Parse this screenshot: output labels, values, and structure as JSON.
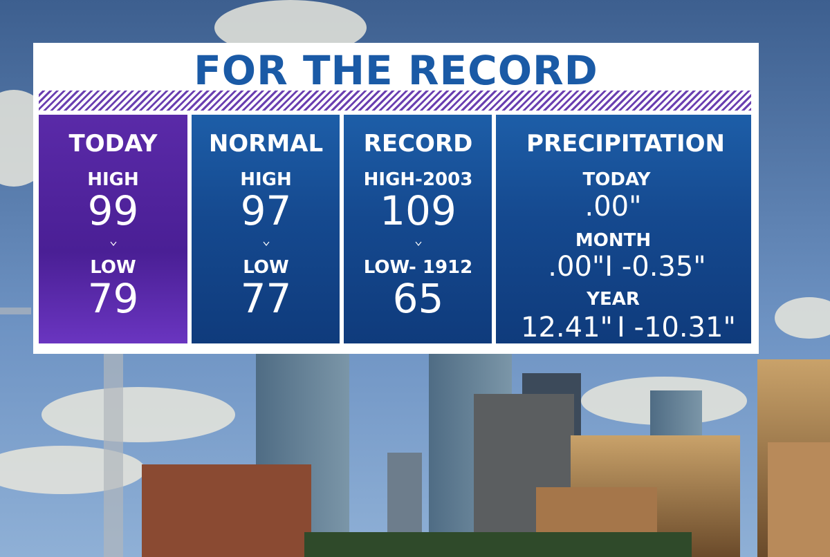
{
  "title": "FOR THE RECORD",
  "columns": [
    {
      "heading": "TODAY",
      "high_label": "HIGH",
      "high": "99",
      "low_label": "LOW",
      "low": "79"
    },
    {
      "heading": "NORMAL",
      "high_label": "HIGH",
      "high": "97",
      "low_label": "LOW",
      "low": "77"
    },
    {
      "heading": "RECORD",
      "high_label": "HIGH-2003",
      "high": "109",
      "low_label": "LOW- 1912",
      "low": "65"
    }
  ],
  "precipitation": {
    "heading": "PRECIPITATION",
    "today_label": "TODAY",
    "today": ".00\"",
    "month_label": "MONTH",
    "month": ".00\"I -0.35\"",
    "year_label": "YEAR",
    "year": "12.41\"",
    "year_departure": "I -10.31\""
  }
}
